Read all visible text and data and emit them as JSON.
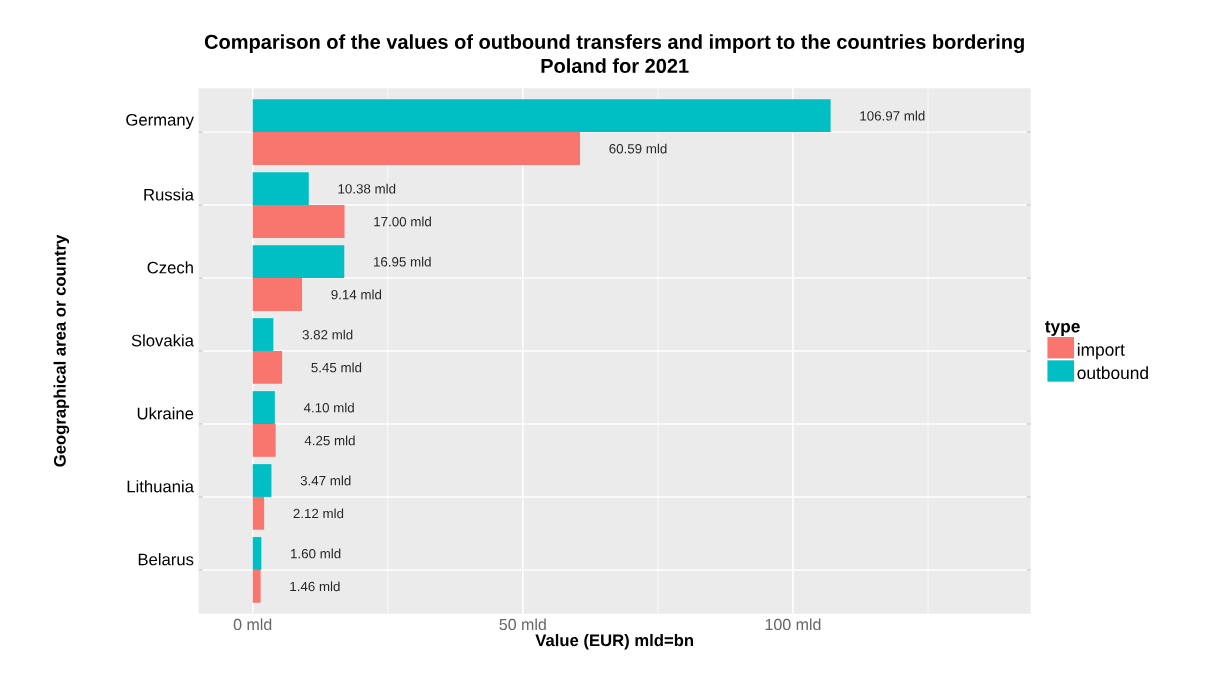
{
  "chart_data": {
    "type": "bar",
    "orientation": "horizontal",
    "title": "Comparison of the values of outbound transfers and import to the countries bordering Poland for 2021",
    "xlabel": "Value (EUR) mld=bn",
    "ylabel": "Geographical area or country",
    "legend_title": "type",
    "categories": [
      "Germany",
      "Russia",
      "Czech",
      "Slovakia",
      "Ukraine",
      "Lithuania",
      "Belarus"
    ],
    "series": [
      {
        "name": "import",
        "color": "#f8766d",
        "values": [
          60.59,
          17.0,
          9.14,
          5.45,
          4.25,
          2.12,
          1.46
        ],
        "value_labels": [
          "60.59 mld",
          "17.00 mld",
          "9.14 mld",
          "5.45 mld",
          "4.25 mld",
          "2.12 mld",
          "1.46 mld"
        ]
      },
      {
        "name": "outbound",
        "color": "#00bfc4",
        "values": [
          106.97,
          10.38,
          16.95,
          3.82,
          4.1,
          3.47,
          1.6
        ],
        "value_labels": [
          "106.97 mld",
          "10.38 mld",
          "16.95 mld",
          "3.82 mld",
          "4.10 mld",
          "3.47 mld",
          "1.60 mld"
        ]
      }
    ],
    "xlim": [
      -10,
      144
    ],
    "xticks": [
      {
        "value": 0,
        "label": "0 mld"
      },
      {
        "value": 50,
        "label": "50 mld"
      },
      {
        "value": 100,
        "label": "100 mld"
      }
    ],
    "grid": true,
    "legend": "right"
  }
}
